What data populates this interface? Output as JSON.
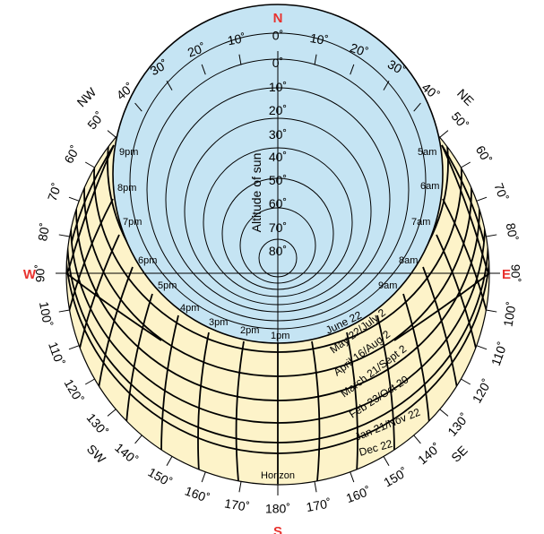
{
  "compass": {
    "north": "N",
    "east": "E",
    "south": "S",
    "west": "W",
    "north_west": "NW",
    "north_east": "NE",
    "south_west": "SW",
    "south_east": "SE"
  },
  "axis_title": "Altitude of sun",
  "horizon_label": "Horizon",
  "altitude_labels": [
    "0˚",
    "10˚",
    "20˚",
    "30˚",
    "40˚",
    "50˚",
    "60˚",
    "70˚",
    "80˚"
  ],
  "azimuth_labels": {
    "east_side": [
      "10˚",
      "20˚",
      "30˚",
      "40˚",
      "50˚",
      "60˚",
      "70˚",
      "80˚",
      "90˚",
      "100˚",
      "110˚",
      "120˚",
      "130˚",
      "140˚",
      "150˚",
      "160˚",
      "170˚"
    ],
    "west_side": [
      "10˚",
      "20˚",
      "30˚",
      "40˚",
      "50˚",
      "60˚",
      "70˚",
      "80˚",
      "90˚",
      "100˚",
      "110˚",
      "120˚",
      "130˚",
      "140˚",
      "150˚",
      "160˚",
      "170˚"
    ],
    "north": "0˚",
    "south": "180˚"
  },
  "time_labels": {
    "morning": [
      "5am",
      "6am",
      "7am",
      "8am",
      "9am"
    ],
    "afternoon": [
      "1pm",
      "2pm",
      "3pm",
      "4pm",
      "5pm",
      "6pm",
      "7pm",
      "8pm",
      "9pm"
    ]
  },
  "date_labels": [
    "June 22",
    "May 22/July 2",
    "April 16/Aug 2",
    "March 21/Sept 2",
    "Feb 23/Oct 20",
    "Jan 21/Nov 22",
    "Dec 22"
  ],
  "colors": {
    "sky": "#c5e4f3",
    "sun_zone": "#fdf3c9",
    "compass_red": "#e8322e",
    "line": "#000000"
  }
}
